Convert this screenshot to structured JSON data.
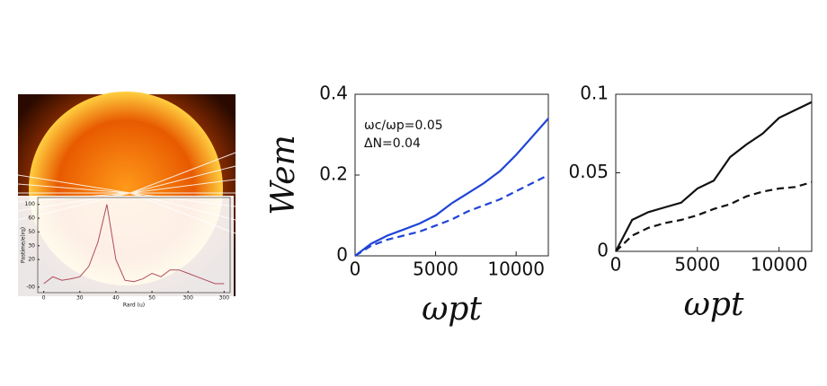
{
  "chart_data": [
    {
      "type": "line",
      "xlabel": "Rard (u)",
      "ylabel": "Pastime/e(rq)",
      "x": [
        0,
        15,
        30,
        45,
        60,
        75,
        90,
        105,
        120,
        135,
        150,
        165,
        180,
        195,
        210,
        225,
        240,
        255,
        270,
        285,
        300
      ],
      "series": [
        {
          "color": "#b04a5a",
          "values": [
            -15,
            -5,
            -10,
            -8,
            -5,
            10,
            45,
            100,
            20,
            -10,
            -12,
            -8,
            0,
            -5,
            5,
            5,
            0,
            -5,
            -10,
            -15,
            -15
          ]
        }
      ],
      "xlim": [
        -10,
        310
      ],
      "xticks": [
        {
          "value": 0,
          "label": "0"
        },
        {
          "value": 60,
          "label": "30"
        },
        {
          "value": 120,
          "label": "40"
        },
        {
          "value": 180,
          "label": "50"
        },
        {
          "value": 240,
          "label": "300"
        },
        {
          "value": 300,
          "label": "300"
        }
      ],
      "ylim": [
        -28,
        110
      ],
      "yticks": [
        100,
        {
          "value": 80,
          "label": "60"
        },
        {
          "value": 60,
          "label": "50"
        },
        {
          "value": 40,
          "label": "30"
        },
        20,
        {
          "value": -20,
          "label": "-00"
        }
      ]
    },
    {
      "type": "line",
      "ylabel": "Wem",
      "xlabel": "ωpt",
      "annotations": [
        "ωc/ωp=0.05",
        "ΔN=0.04"
      ],
      "x": [
        0,
        1000,
        2000,
        3000,
        4000,
        5000,
        6000,
        7000,
        8000,
        9000,
        10000,
        11000,
        12000
      ],
      "series": [
        {
          "color": "#1f44d6",
          "dash": false,
          "values": [
            0,
            0.03,
            0.05,
            0.065,
            0.08,
            0.1,
            0.13,
            0.155,
            0.18,
            0.21,
            0.25,
            0.295,
            0.34
          ]
        },
        {
          "color": "#1f44d6",
          "dash": true,
          "values": [
            0,
            0.025,
            0.04,
            0.05,
            0.06,
            0.075,
            0.09,
            0.11,
            0.125,
            0.14,
            0.16,
            0.18,
            0.2
          ]
        }
      ],
      "xlim": [
        0,
        12000
      ],
      "xticks": [
        0,
        5000,
        10000
      ],
      "ylim": [
        0,
        0.4
      ],
      "yticks": [
        0,
        0.2,
        0.4
      ]
    },
    {
      "type": "line",
      "xlabel": "ωpt",
      "x": [
        0,
        1000,
        2000,
        3000,
        4000,
        5000,
        6000,
        7000,
        8000,
        9000,
        10000,
        11000,
        12000
      ],
      "series": [
        {
          "color": "#111111",
          "dash": false,
          "values": [
            0,
            0.02,
            0.025,
            0.028,
            0.031,
            0.04,
            0.045,
            0.06,
            0.068,
            0.075,
            0.085,
            0.09,
            0.095
          ]
        },
        {
          "color": "#111111",
          "dash": true,
          "values": [
            0,
            0.01,
            0.015,
            0.018,
            0.02,
            0.023,
            0.027,
            0.03,
            0.035,
            0.038,
            0.04,
            0.041,
            0.044
          ]
        }
      ],
      "xlim": [
        0,
        12000
      ],
      "xticks": [
        0,
        5000,
        10000
      ],
      "ylim": [
        0,
        0.1
      ],
      "yticks": [
        0,
        0.05,
        0.1
      ]
    }
  ]
}
